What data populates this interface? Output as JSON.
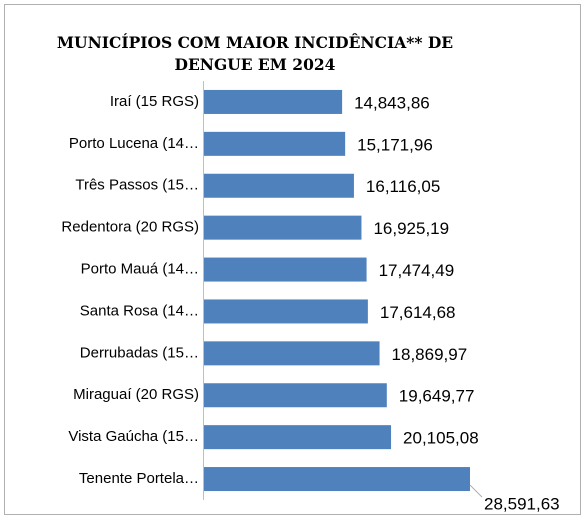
{
  "chart_data": {
    "type": "bar",
    "orientation": "horizontal",
    "title": [
      "MUNICÍPIOS COM MAIOR INCIDÊNCIA** DE",
      "DENGUE EM 2024"
    ],
    "categories": [
      "Iraí (15 RGS)",
      "Porto Lucena (14…",
      "Três Passos (15…",
      "Redentora (20 RGS)",
      "Porto Mauá (14…",
      "Santa Rosa (14…",
      "Derrubadas (15…",
      "Miraguaí (20 RGS)",
      "Vista Gaúcha (15…",
      "Tenente Portela…"
    ],
    "values": [
      14843.86,
      15171.96,
      16116.05,
      16925.19,
      17474.49,
      17614.68,
      18869.97,
      19649.77,
      20105.08,
      28591.63
    ],
    "value_labels": [
      "14,843,86",
      "15,171,96",
      "16,116,05",
      "16,925,19",
      "17,474,49",
      "17,614,68",
      "18,869,97",
      "19,649,77",
      "20,105,08",
      "28,591,63"
    ],
    "color": "#4f81bd"
  }
}
